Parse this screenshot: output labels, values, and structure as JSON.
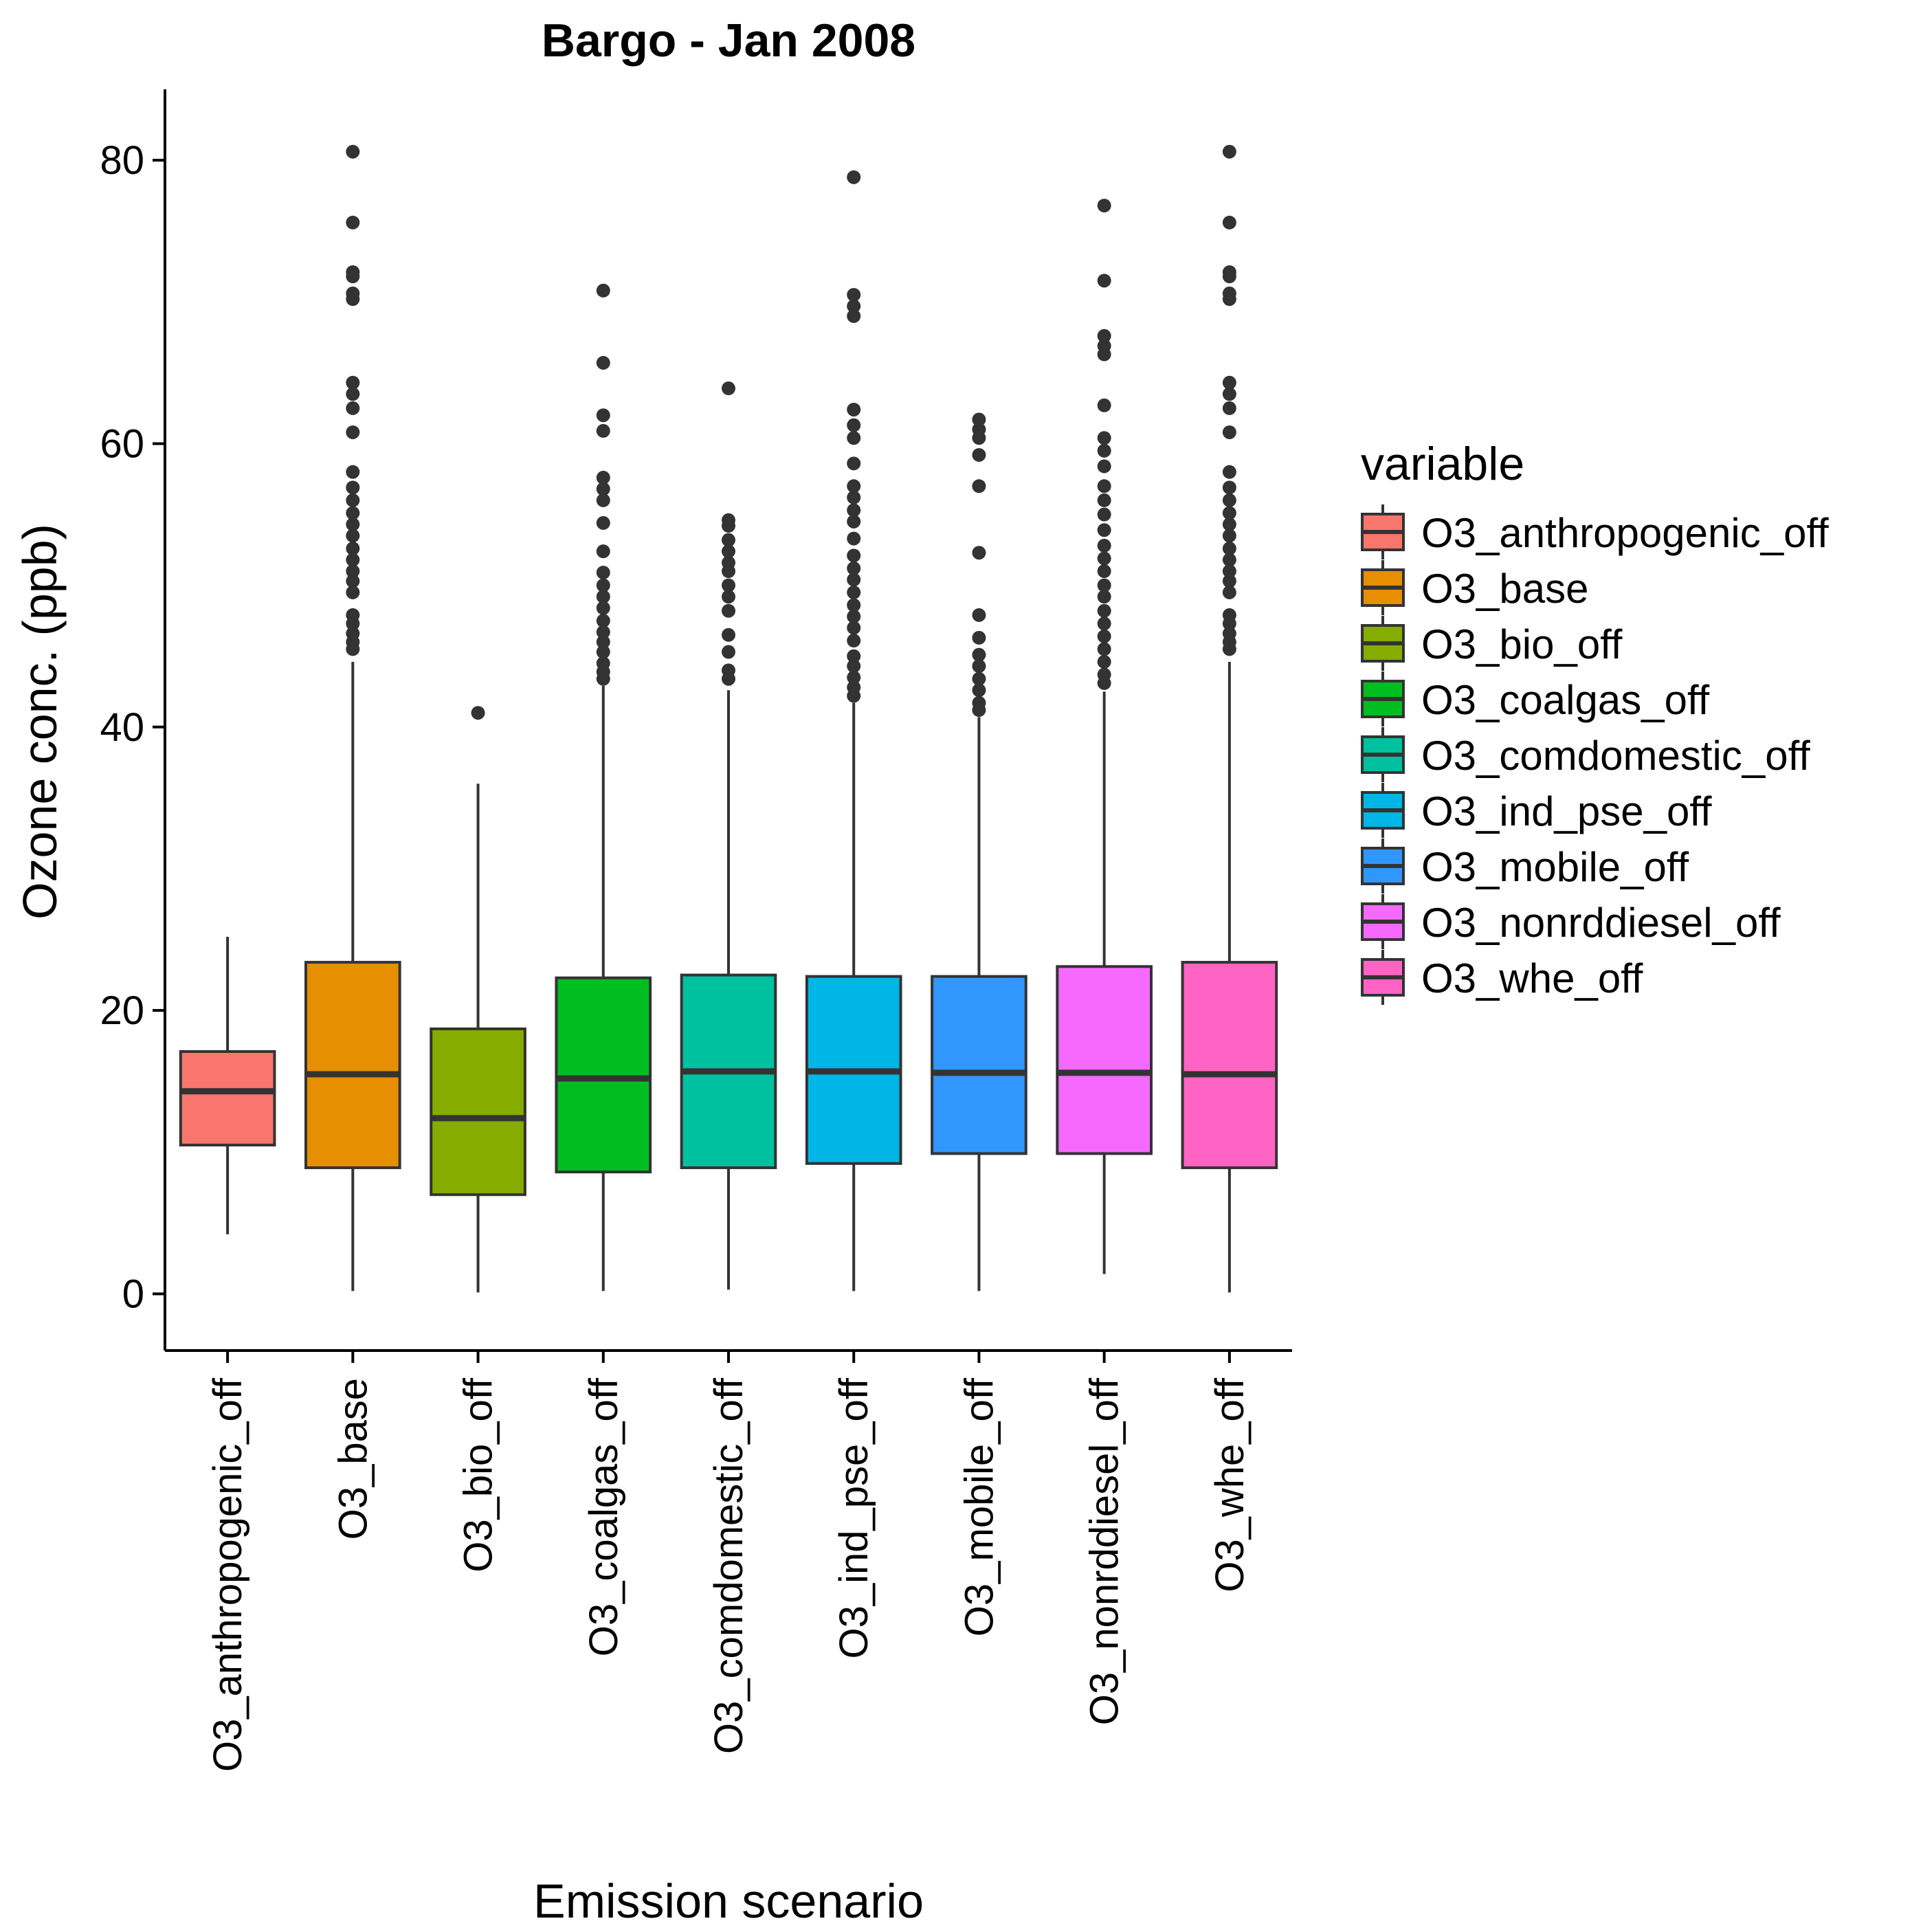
{
  "chart_data": {
    "type": "boxplot",
    "title": "Bargo  -  Jan 2008",
    "xlabel": "Emission scenario",
    "ylabel": "Ozone conc. (ppb)",
    "ylim": [
      -4,
      85
    ],
    "yticks": [
      0,
      20,
      40,
      60,
      80
    ],
    "grid": false,
    "legend_title": "variable",
    "legend_position": "right",
    "categories": [
      "O3_anthropogenic_off",
      "O3_base",
      "O3_bio_off",
      "O3_coalgas_off",
      "O3_comdomestic_off",
      "O3_ind_pse_off",
      "O3_mobile_off",
      "O3_nonrddiesel_off",
      "O3_whe_off"
    ],
    "series": [
      {
        "name": "O3_anthropogenic_off",
        "color": "#F8766D",
        "whisker_low": 4.2,
        "q1": 10.5,
        "median": 14.3,
        "q3": 17.1,
        "whisker_high": 25.2,
        "outliers": []
      },
      {
        "name": "O3_base",
        "color": "#E68F00",
        "whisker_low": 0.2,
        "q1": 8.9,
        "median": 15.5,
        "q3": 23.4,
        "whisker_high": 44.6,
        "outliers": [
          45.5,
          46.0,
          46.6,
          47.3,
          47.9,
          49.5,
          50.3,
          51.0,
          51.8,
          52.6,
          53.5,
          54.3,
          55.1,
          56.0,
          56.9,
          58.0,
          60.8,
          62.5,
          63.5,
          64.3,
          70.2,
          70.6,
          71.8,
          72.1,
          75.6,
          80.6
        ]
      },
      {
        "name": "O3_bio_off",
        "color": "#86AC00",
        "whisker_low": 0.1,
        "q1": 7.0,
        "median": 12.4,
        "q3": 18.7,
        "whisker_high": 36.0,
        "outliers": [
          41.0
        ]
      },
      {
        "name": "O3_coalgas_off",
        "color": "#00BE20",
        "whisker_low": 0.2,
        "q1": 8.6,
        "median": 15.2,
        "q3": 22.3,
        "whisker_high": 42.9,
        "outliers": [
          43.4,
          43.9,
          44.5,
          45.3,
          46.0,
          46.7,
          47.5,
          48.4,
          49.2,
          50.0,
          50.9,
          52.4,
          54.4,
          56.0,
          56.8,
          57.6,
          60.9,
          62.0,
          65.7,
          70.8
        ]
      },
      {
        "name": "O3_comdomestic_off",
        "color": "#00C19F",
        "whisker_low": 0.3,
        "q1": 8.9,
        "median": 15.7,
        "q3": 22.5,
        "whisker_high": 42.6,
        "outliers": [
          43.4,
          44.0,
          45.3,
          46.5,
          48.2,
          49.2,
          50.0,
          51.0,
          51.6,
          52.4,
          53.2,
          54.2,
          54.6,
          63.9
        ]
      },
      {
        "name": "O3_ind_pse_off",
        "color": "#00B6E6",
        "whisker_low": 0.2,
        "q1": 9.2,
        "median": 15.7,
        "q3": 22.4,
        "whisker_high": 41.7,
        "outliers": [
          42.2,
          42.8,
          43.5,
          44.3,
          45.0,
          46.1,
          47.0,
          47.8,
          48.6,
          49.5,
          50.4,
          51.2,
          52.1,
          53.3,
          54.5,
          55.3,
          56.2,
          57.0,
          58.6,
          60.4,
          61.3,
          62.4,
          69.0,
          69.7,
          70.5,
          78.8
        ]
      },
      {
        "name": "O3_mobile_off",
        "color": "#3097FF",
        "whisker_low": 0.2,
        "q1": 9.9,
        "median": 15.6,
        "q3": 22.4,
        "whisker_high": 40.7,
        "outliers": [
          41.2,
          41.7,
          42.6,
          43.4,
          44.3,
          45.1,
          46.3,
          47.9,
          52.3,
          57.0,
          59.2,
          60.4,
          61.0,
          61.7
        ]
      },
      {
        "name": "O3_nonrddiesel_off",
        "color": "#F569FF",
        "whisker_low": 1.4,
        "q1": 9.9,
        "median": 15.6,
        "q3": 23.1,
        "whisker_high": 42.5,
        "outliers": [
          43.1,
          43.7,
          44.6,
          45.5,
          46.4,
          47.3,
          48.2,
          49.2,
          50.0,
          51.0,
          51.9,
          52.8,
          53.9,
          55.0,
          56.0,
          57.0,
          58.4,
          59.5,
          60.4,
          62.7,
          66.3,
          66.9,
          67.6,
          71.5,
          76.8
        ]
      },
      {
        "name": "O3_whe_off",
        "color": "#FF64C4",
        "whisker_low": 0.1,
        "q1": 8.9,
        "median": 15.5,
        "q3": 23.4,
        "whisker_high": 44.6,
        "outliers": [
          45.5,
          46.0,
          46.6,
          47.3,
          47.9,
          49.5,
          50.3,
          51.0,
          51.8,
          52.6,
          53.5,
          54.3,
          55.1,
          56.0,
          56.9,
          58.0,
          60.8,
          62.5,
          63.5,
          64.3,
          70.2,
          70.6,
          71.8,
          72.1,
          75.6,
          80.6
        ]
      }
    ]
  }
}
